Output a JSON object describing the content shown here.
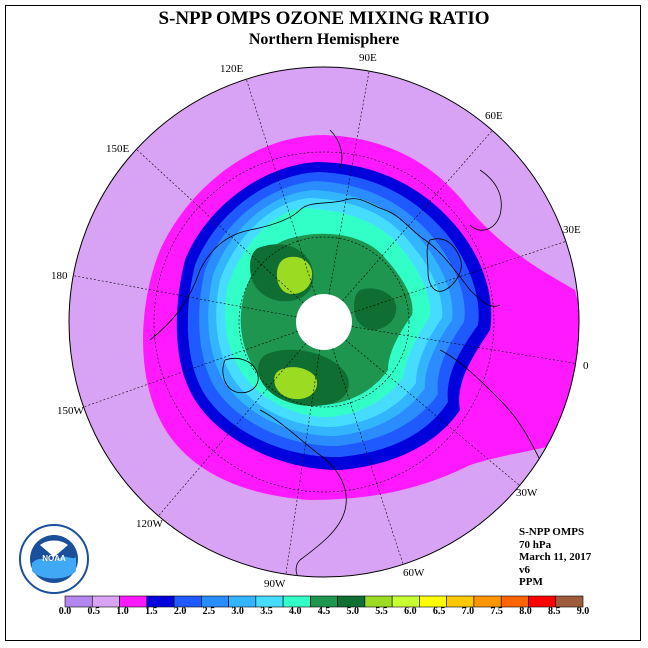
{
  "header": {
    "title": "S-NPP OMPS OZONE MIXING RATIO",
    "subtitle": "Northern Hemisphere"
  },
  "map": {
    "projection": "north polar stereographic",
    "longitude_labels": [
      "90E",
      "60E",
      "30E",
      "0",
      "30W",
      "60W",
      "90W",
      "120W",
      "150W",
      "180",
      "150E",
      "120E"
    ],
    "polar_no_data_fill": "#ffffff",
    "background_fill": "#d9a3f5"
  },
  "info": {
    "instrument": "S-NPP OMPS",
    "level": "70 hPa",
    "date": "March 11, 2017",
    "version": "v6",
    "units": "PPM"
  },
  "colorbar": {
    "ticks": [
      "0.0",
      "0.5",
      "1.0",
      "1.5",
      "2.0",
      "2.5",
      "3.0",
      "3.5",
      "4.0",
      "4.5",
      "5.0",
      "5.5",
      "6.0",
      "6.5",
      "7.0",
      "7.5",
      "8.0",
      "8.5",
      "9.0"
    ],
    "colors": [
      "#b487f0",
      "#d9a3f5",
      "#ff19ff",
      "#0000dc",
      "#1e5aff",
      "#2a8cff",
      "#32b4ff",
      "#46dcff",
      "#32ffc8",
      "#1e9650",
      "#0f6e32",
      "#9bdc23",
      "#c8ff32",
      "#ffff00",
      "#ffc800",
      "#ff9600",
      "#ff6400",
      "#ff0000",
      "#a05a3c"
    ]
  },
  "logo": {
    "text": "NOAA",
    "ring_text": "NATIONAL OCEANIC AND ATMOSPHERIC ADMINISTRATION · U.S. DEPARTMENT OF COMMERCE"
  }
}
